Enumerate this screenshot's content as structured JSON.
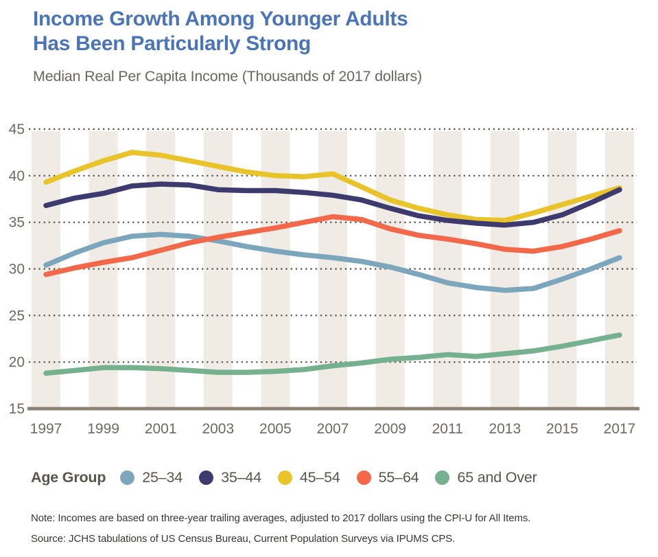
{
  "header": {
    "title_line1": "Income Growth Among Younger Adults",
    "title_line2": "Has Been Particularly Strong",
    "subtitle": "Median Real Per Capita Income (Thousands of 2017 dollars)"
  },
  "legend": {
    "title": "Age Group"
  },
  "notes": {
    "note": "Note: Incomes are based on three-year trailing  averages, adjusted to 2017 dollars using the CPI-U for All Items.",
    "source": "Source: JCHS tabulations of US Census Bureau, Current Population Surveys via IPUMS CPS."
  },
  "colors": {
    "title": "#4B74B7",
    "subtitle": "#6C665E",
    "axis_labels": "#6F6961",
    "gridline": "#56504A",
    "axis_line": "#8B8274",
    "stripe": "#F0EBE5",
    "legend_text": "#5A544B",
    "note_text": "#3A3632"
  },
  "chart_data": {
    "type": "line",
    "title": "Income Growth Among Younger Adults Has Been Particularly Strong",
    "subtitle": "Median Real Per Capita Income (Thousands of 2017 dollars)",
    "x": [
      1997,
      1998,
      1999,
      2000,
      2001,
      2002,
      2003,
      2004,
      2005,
      2006,
      2007,
      2008,
      2009,
      2010,
      2011,
      2012,
      2013,
      2014,
      2015,
      2016,
      2017
    ],
    "x_tick_labels": [
      "1997",
      "1999",
      "2001",
      "2003",
      "2005",
      "2007",
      "2009",
      "2011",
      "2013",
      "2015",
      "2017"
    ],
    "xlabel": "",
    "ylabel": "",
    "ylim": [
      15,
      45
    ],
    "y_ticks": [
      15,
      20,
      25,
      30,
      35,
      40,
      45
    ],
    "grid": "horizontal dotted gridlines at each y tick above baseline",
    "background": "vertical beige stripes one year wide centered on each labeled (odd) year",
    "legend_position": "bottom",
    "legend_title": "Age Group",
    "series": [
      {
        "name": "25–34",
        "color": "#7BA6BB",
        "values": [
          30.4,
          31.7,
          32.8,
          33.5,
          33.7,
          33.5,
          33.0,
          32.4,
          31.9,
          31.5,
          31.2,
          30.8,
          30.2,
          29.4,
          28.5,
          28.0,
          27.7,
          27.9,
          28.9,
          30.0,
          31.2
        ]
      },
      {
        "name": "35–44",
        "color": "#3D3B6E",
        "values": [
          36.8,
          37.6,
          38.1,
          38.9,
          39.1,
          39.0,
          38.5,
          38.4,
          38.4,
          38.2,
          37.9,
          37.4,
          36.5,
          35.7,
          35.2,
          34.9,
          34.7,
          35.0,
          35.8,
          37.1,
          38.5
        ]
      },
      {
        "name": "45–54",
        "color": "#E9C32A",
        "values": [
          39.3,
          40.5,
          41.6,
          42.5,
          42.2,
          41.6,
          41.0,
          40.4,
          40.0,
          39.9,
          40.2,
          38.8,
          37.4,
          36.5,
          35.8,
          35.3,
          35.2,
          36.0,
          36.9,
          37.8,
          38.7
        ]
      },
      {
        "name": "55–64",
        "color": "#F26849",
        "values": [
          29.4,
          30.1,
          30.7,
          31.2,
          32.0,
          32.8,
          33.4,
          33.9,
          34.4,
          35.0,
          35.6,
          35.3,
          34.3,
          33.6,
          33.2,
          32.7,
          32.1,
          31.9,
          32.4,
          33.2,
          34.1
        ]
      },
      {
        "name": "65 and Over",
        "color": "#76B18F",
        "values": [
          18.8,
          19.1,
          19.4,
          19.4,
          19.3,
          19.1,
          18.9,
          18.9,
          19.0,
          19.2,
          19.6,
          19.9,
          20.3,
          20.5,
          20.8,
          20.6,
          20.9,
          21.2,
          21.7,
          22.3,
          22.9
        ]
      }
    ]
  }
}
